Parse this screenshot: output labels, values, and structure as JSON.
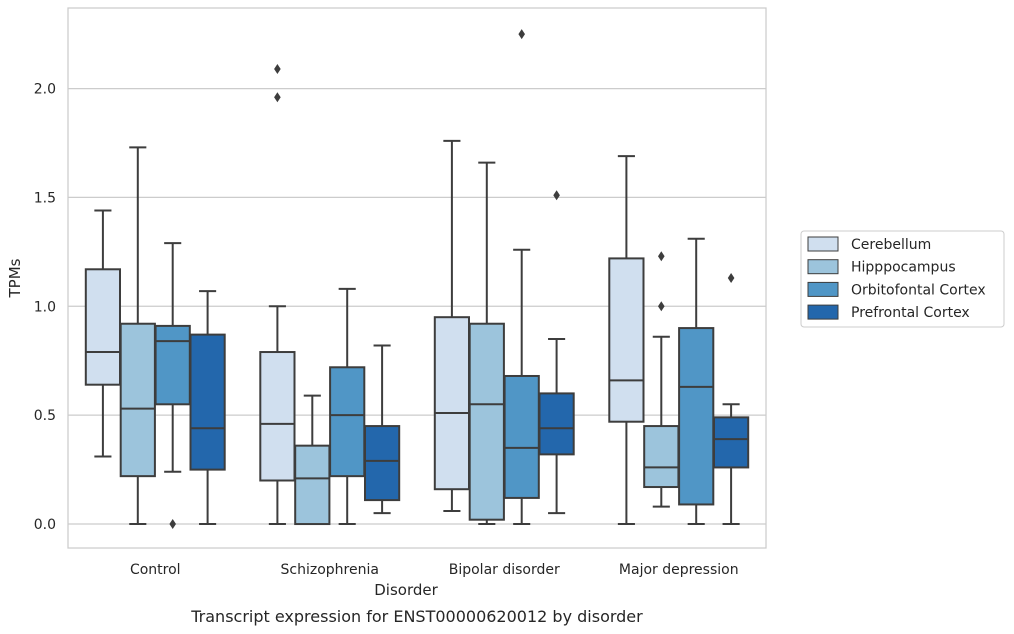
{
  "chart_data": {
    "type": "box",
    "caption": "Transcript expression for ENST00000620012 by disorder",
    "xlabel": "Disorder",
    "ylabel": "TPMs",
    "ylim": [
      -0.11,
      2.37
    ],
    "yticks": [
      0.0,
      0.5,
      1.0,
      1.5,
      2.0
    ],
    "ytick_labels": [
      "0.0",
      "0.5",
      "1.0",
      "1.5",
      "2.0"
    ],
    "grid": "horizontal",
    "legend_position": "right",
    "categories": [
      "Control",
      "Schizophrenia",
      "Bipolar disorder",
      "Major depression"
    ],
    "series": [
      {
        "name": "Cerebellum",
        "color": "#d0dfef",
        "boxes": [
          {
            "whislo": 0.31,
            "q1": 0.64,
            "med": 0.79,
            "q3": 1.17,
            "whishi": 1.44,
            "fliers": []
          },
          {
            "whislo": 0.0,
            "q1": 0.2,
            "med": 0.46,
            "q3": 0.79,
            "whishi": 1.0,
            "fliers": [
              1.96,
              2.09
            ]
          },
          {
            "whislo": 0.06,
            "q1": 0.16,
            "med": 0.51,
            "q3": 0.95,
            "whishi": 1.76,
            "fliers": []
          },
          {
            "whislo": 0.0,
            "q1": 0.47,
            "med": 0.66,
            "q3": 1.22,
            "whishi": 1.69,
            "fliers": []
          }
        ]
      },
      {
        "name": "Hipppocampus",
        "color": "#9cc4dc",
        "boxes": [
          {
            "whislo": 0.0,
            "q1": 0.22,
            "med": 0.53,
            "q3": 0.92,
            "whishi": 1.73,
            "fliers": []
          },
          {
            "whislo": 0.0,
            "q1": 0.0,
            "med": 0.21,
            "q3": 0.36,
            "whishi": 0.59,
            "fliers": []
          },
          {
            "whislo": 0.0,
            "q1": 0.02,
            "med": 0.55,
            "q3": 0.92,
            "whishi": 1.66,
            "fliers": []
          },
          {
            "whislo": 0.08,
            "q1": 0.17,
            "med": 0.26,
            "q3": 0.45,
            "whishi": 0.86,
            "fliers": [
              1.0,
              1.23
            ]
          }
        ]
      },
      {
        "name": "Orbitofontal Cortex",
        "color": "#5096c6",
        "boxes": [
          {
            "whislo": 0.24,
            "q1": 0.55,
            "med": 0.84,
            "q3": 0.91,
            "whishi": 1.29,
            "fliers": [
              0.0
            ]
          },
          {
            "whislo": 0.0,
            "q1": 0.22,
            "med": 0.5,
            "q3": 0.72,
            "whishi": 1.08,
            "fliers": []
          },
          {
            "whislo": 0.0,
            "q1": 0.12,
            "med": 0.35,
            "q3": 0.68,
            "whishi": 1.26,
            "fliers": [
              2.25
            ]
          },
          {
            "whislo": 0.0,
            "q1": 0.09,
            "med": 0.63,
            "q3": 0.9,
            "whishi": 1.31,
            "fliers": []
          }
        ]
      },
      {
        "name": "Prefrontal Cortex",
        "color": "#2367ac",
        "boxes": [
          {
            "whislo": 0.0,
            "q1": 0.25,
            "med": 0.44,
            "q3": 0.87,
            "whishi": 1.07,
            "fliers": []
          },
          {
            "whislo": 0.05,
            "q1": 0.11,
            "med": 0.29,
            "q3": 0.45,
            "whishi": 0.82,
            "fliers": []
          },
          {
            "whislo": 0.05,
            "q1": 0.32,
            "med": 0.44,
            "q3": 0.6,
            "whishi": 0.85,
            "fliers": [
              1.51
            ]
          },
          {
            "whislo": 0.0,
            "q1": 0.26,
            "med": 0.39,
            "q3": 0.49,
            "whishi": 0.55,
            "fliers": [
              1.13
            ]
          }
        ]
      }
    ]
  }
}
